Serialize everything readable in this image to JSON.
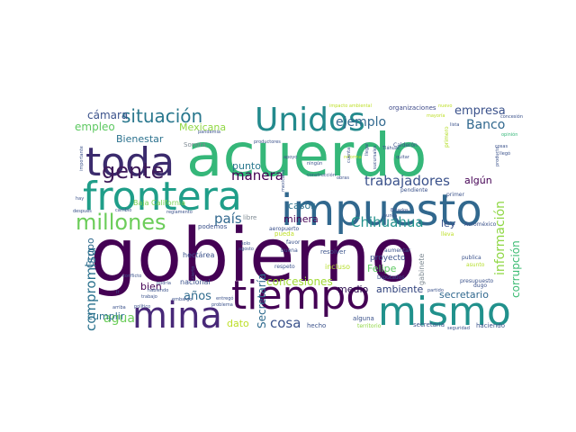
{
  "palette": {
    "deep_purple": "#440154",
    "indigo": "#3b528b",
    "blue": "#31688e",
    "teal": "#21918c",
    "green": "#35b779",
    "lime": "#90d743",
    "yellow": "#fde725"
  },
  "words": [
    {
      "text": "gobierno",
      "color": "#440154"
    },
    {
      "text": "acuerdo",
      "color": "#35b779"
    },
    {
      "text": "frontera",
      "color": "#1f9e89"
    },
    {
      "text": "impuesto",
      "color": "#31688e"
    },
    {
      "text": "toda",
      "color": "#3b2b6d"
    },
    {
      "text": "tiempo",
      "color": "#440154"
    },
    {
      "text": "mismo",
      "color": "#21918c"
    },
    {
      "text": "mina",
      "color": "#482878"
    },
    {
      "text": "Unidos",
      "color": "#238a8d"
    },
    {
      "text": "millones",
      "color": "#6ccd5a"
    },
    {
      "text": "gente",
      "color": "#3e1a5a"
    },
    {
      "text": "situación",
      "color": "#2a788e"
    },
    {
      "text": "trabajadores",
      "color": "#3b528b"
    },
    {
      "text": "Chihuahua",
      "color": "#21918c"
    },
    {
      "text": "manera",
      "color": "#440154"
    },
    {
      "text": "país",
      "color": "#31688e"
    },
    {
      "text": "cosa",
      "color": "#3b528b"
    },
    {
      "text": "medio",
      "color": "#2a0a4d"
    },
    {
      "text": "ambiente",
      "color": "#2c3e7a"
    },
    {
      "text": "años",
      "color": "#2f6b8e"
    },
    {
      "text": "Banco",
      "color": "#31688e"
    },
    {
      "text": "ejemplo",
      "color": "#31688e"
    },
    {
      "text": "minera",
      "color": "#440154"
    },
    {
      "text": "agua",
      "color": "#6ccd5a"
    },
    {
      "text": "compromiso",
      "color": "#2c728e"
    },
    {
      "text": "información",
      "color": "#8fd744"
    },
    {
      "text": "concesiones",
      "color": "#a2da37"
    },
    {
      "text": "Secretaría",
      "color": "#2f6b8e"
    },
    {
      "text": "Felipe",
      "color": "#5ec962"
    },
    {
      "text": "corrupción",
      "color": "#3dbc74"
    },
    {
      "text": "secretario",
      "color": "#31688e"
    },
    {
      "text": "empresa",
      "color": "#3b528b"
    },
    {
      "text": "casos",
      "color": "#2c728e"
    },
    {
      "text": "punto",
      "color": "#2a788e"
    },
    {
      "text": "algún",
      "color": "#440154"
    },
    {
      "text": "ley",
      "color": "#3b528b"
    },
    {
      "text": "bien",
      "color": "#440154"
    },
    {
      "text": "cumplir",
      "color": "#2c728e"
    },
    {
      "text": "dato",
      "color": "#bddf26"
    },
    {
      "text": "Grupo",
      "color": "#2f6b8e"
    },
    {
      "text": "cámara",
      "color": "#3b528b"
    },
    {
      "text": "empleo",
      "color": "#5ec962"
    },
    {
      "text": "Bienestar",
      "color": "#2c728e"
    },
    {
      "text": "Mexicana",
      "color": "#90d743"
    },
    {
      "text": "proyecto",
      "color": "#3b528b"
    },
    {
      "text": "nacional",
      "color": "#3b528b"
    },
    {
      "text": "hecho",
      "color": "#3b528b"
    },
    {
      "text": "Sonora",
      "color": "#7e8a93"
    },
    {
      "text": "organizaciones",
      "color": "#3e4a89"
    },
    {
      "text": "hectárea",
      "color": "#3b528b"
    },
    {
      "text": "podemos",
      "color": "#3b528b"
    },
    {
      "text": "reglamento",
      "color": "#3b528b"
    },
    {
      "text": "Baja California",
      "color": "#7ad151"
    },
    {
      "text": "gabinete",
      "color": "#7e8a93"
    },
    {
      "text": "incluso",
      "color": "#b5de2b"
    },
    {
      "text": "alguna",
      "color": "#3b528b"
    },
    {
      "text": "territorio",
      "color": "#90d743"
    },
    {
      "text": "haciendo",
      "color": "#3b528b"
    },
    {
      "text": "secretaria",
      "color": "#3b528b"
    },
    {
      "text": "libre",
      "color": "#7e8a93"
    },
    {
      "text": "pueda",
      "color": "#bddf26"
    },
    {
      "text": "resolver",
      "color": "#3b528b"
    },
    {
      "text": "favor",
      "color": "#3b528b"
    },
    {
      "text": "pendiente",
      "color": "#3b528b"
    },
    {
      "text": "aeropuerto",
      "color": "#3b528b"
    },
    {
      "text": "buena",
      "color": "#3b528b"
    },
    {
      "text": "respeto",
      "color": "#3b528b"
    },
    {
      "text": "primer",
      "color": "#3b528b"
    },
    {
      "text": "Aeroméxico",
      "color": "#3b528b"
    },
    {
      "text": "dugo",
      "color": "#3b528b"
    },
    {
      "text": "presupuesto",
      "color": "#3b528b"
    },
    {
      "text": "asunto",
      "color": "#b5de2b"
    },
    {
      "text": "publica",
      "color": "#3b528b"
    },
    {
      "text": "lleva",
      "color": "#bddf26"
    },
    {
      "text": "Diputados",
      "color": "#3b528b"
    },
    {
      "text": "partido",
      "color": "#3b528b"
    },
    {
      "text": "aumentar",
      "color": "#3b528b"
    },
    {
      "text": "Calderón",
      "color": "#3b528b"
    },
    {
      "text": "impacto ambiental",
      "color": "#bddf26"
    },
    {
      "text": "nuevo",
      "color": "#bddf26"
    },
    {
      "text": "concesión",
      "color": "#3b528b"
    },
    {
      "text": "opinión",
      "color": "#35b779"
    },
    {
      "text": "mayoría",
      "color": "#bddf26"
    },
    {
      "text": "lista",
      "color": "#3b528b"
    },
    {
      "text": "productores",
      "color": "#3b528b"
    },
    {
      "text": "quitar",
      "color": "#3b528b"
    },
    {
      "text": "sucursales",
      "color": "#3b528b"
    },
    {
      "text": "primero",
      "color": "#b5de2b"
    },
    {
      "text": "pandemia",
      "color": "#3b528b"
    },
    {
      "text": "apoyo",
      "color": "#3b528b"
    },
    {
      "text": "construcción",
      "color": "#3b528b"
    },
    {
      "text": "reforma",
      "color": "#bddf26"
    },
    {
      "text": "llegar",
      "color": "#3b528b"
    },
    {
      "text": "cuenta",
      "color": "#3b528b"
    },
    {
      "text": "importante",
      "color": "#3b528b"
    },
    {
      "text": "después",
      "color": "#3b528b"
    },
    {
      "text": "cambio",
      "color": "#3b528b"
    },
    {
      "text": "trabajo",
      "color": "#3b528b"
    },
    {
      "text": "conflicto",
      "color": "#3b528b"
    },
    {
      "text": "arriba",
      "color": "#3b528b"
    },
    {
      "text": "político",
      "color": "#3b528b"
    },
    {
      "text": "podría",
      "color": "#3b528b"
    },
    {
      "text": "cierto",
      "color": "#3b528b"
    },
    {
      "text": "problema",
      "color": "#3b528b"
    },
    {
      "text": "entregó",
      "color": "#3b528b"
    },
    {
      "text": "habiendo",
      "color": "#3b528b"
    },
    {
      "text": "solo",
      "color": "#3b528b"
    },
    {
      "text": "agosto",
      "color": "#3b528b"
    },
    {
      "text": "mexicano",
      "color": "#3b528b"
    },
    {
      "text": "hay",
      "color": "#3b528b"
    },
    {
      "text": "ningún",
      "color": "#3b528b"
    },
    {
      "text": "seguridad",
      "color": "#3b528b"
    },
    {
      "text": "Ir",
      "color": "#3b528b"
    },
    {
      "text": "embargo",
      "color": "#3b528b"
    },
    {
      "text": "cosas",
      "color": "#3b528b"
    },
    {
      "text": "llegó",
      "color": "#3b528b"
    },
    {
      "text": "producto",
      "color": "#3b528b"
    },
    {
      "text": "Tláhuac",
      "color": "#3b528b"
    },
    {
      "text": "obras",
      "color": "#3b528b"
    },
    {
      "text": "Estados",
      "color": "#3b528b"
    },
    {
      "text": "nunca",
      "color": "#3b528b"
    }
  ]
}
